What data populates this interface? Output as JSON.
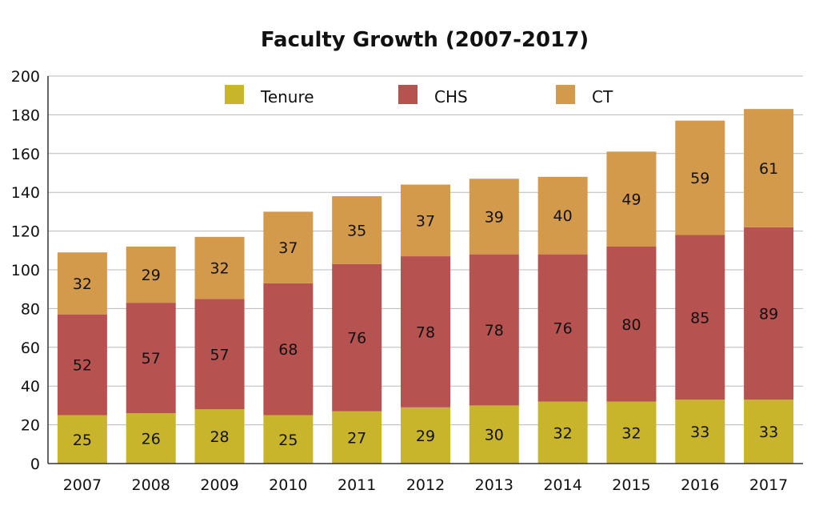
{
  "chart_data": {
    "type": "bar",
    "stacked": true,
    "title": "Faculty Growth (2007-2017)",
    "xlabel": "",
    "ylabel": "",
    "ylim": [
      0,
      200
    ],
    "yticks": [
      0,
      20,
      40,
      60,
      80,
      100,
      120,
      140,
      160,
      180,
      200
    ],
    "grid": true,
    "legend_position": "top",
    "categories": [
      "2007",
      "2008",
      "2009",
      "2010",
      "2011",
      "2012",
      "2013",
      "2014",
      "2015",
      "2016",
      "2017"
    ],
    "series": [
      {
        "name": "Tenure",
        "color": "#c8b52b",
        "values": [
          25,
          26,
          28,
          25,
          27,
          29,
          30,
          32,
          32,
          33,
          33
        ]
      },
      {
        "name": "CHS",
        "color": "#b65250",
        "values": [
          52,
          57,
          57,
          68,
          76,
          78,
          78,
          76,
          80,
          85,
          89
        ]
      },
      {
        "name": "CT",
        "color": "#d49a4c",
        "values": [
          32,
          29,
          32,
          37,
          35,
          37,
          39,
          40,
          49,
          59,
          61
        ]
      }
    ]
  }
}
